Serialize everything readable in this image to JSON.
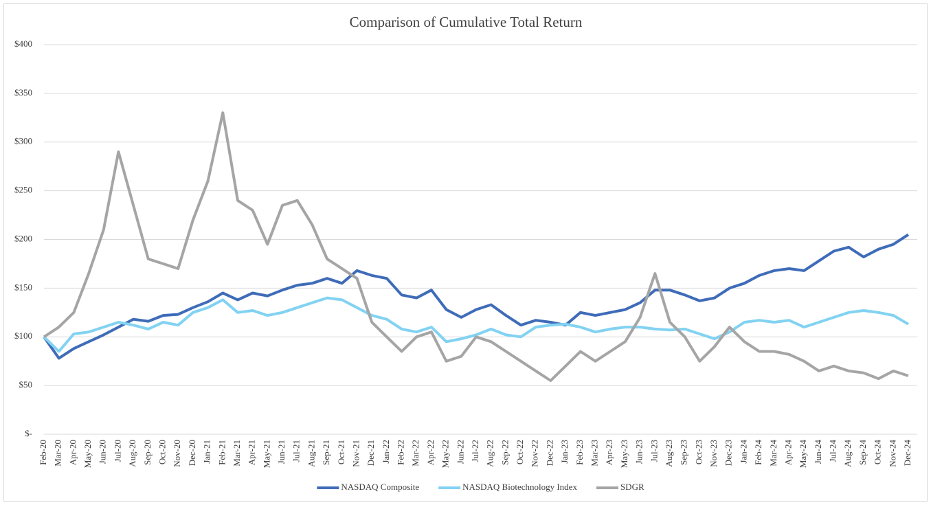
{
  "chart_data": {
    "type": "line",
    "title": "Comparison of Cumulative Total Return",
    "categories": [
      "Feb-20",
      "Mar-20",
      "Apr-20",
      "May-20",
      "Jun-20",
      "Jul-20",
      "Aug-20",
      "Sep-20",
      "Oct-20",
      "Nov-20",
      "Dec-20",
      "Jan-21",
      "Feb-21",
      "Mar-21",
      "Apr-21",
      "May-21",
      "Jun-21",
      "Jul-21",
      "Aug-21",
      "Sep-21",
      "Oct-21",
      "Nov-21",
      "Dec-21",
      "Jan-22",
      "Feb-22",
      "Mar-22",
      "Apr-22",
      "May-22",
      "Jun-22",
      "Jul-22",
      "Aug-22",
      "Sep-22",
      "Oct-22",
      "Nov-22",
      "Dec-22",
      "Jan-23",
      "Feb-23",
      "Mar-23",
      "Apr-23",
      "May-23",
      "Jun-23",
      "Jul-23",
      "Aug-23",
      "Sep-23",
      "Oct-23",
      "Nov-23",
      "Dec-23",
      "Jan-24",
      "Feb-24",
      "Mar-24",
      "Apr-24",
      "May-24",
      "Jun-24",
      "Jul-24",
      "Aug-24",
      "Sep-24",
      "Oct-24",
      "Nov-24",
      "Dec-24"
    ],
    "series": [
      {
        "name": "NASDAQ Composite",
        "color": "#3f6cb8",
        "values": [
          100,
          78,
          88,
          95,
          102,
          110,
          118,
          116,
          122,
          123,
          130,
          136,
          145,
          138,
          145,
          142,
          148,
          153,
          155,
          160,
          155,
          168,
          163,
          160,
          143,
          140,
          148,
          128,
          120,
          128,
          133,
          122,
          112,
          117,
          115,
          112,
          125,
          122,
          125,
          128,
          135,
          148,
          148,
          143,
          137,
          140,
          150,
          155,
          163,
          168,
          170,
          168,
          178,
          188,
          192,
          182,
          190,
          195,
          205
        ]
      },
      {
        "name": "NASDAQ Biotechnology Index",
        "color": "#82d2f2",
        "values": [
          100,
          85,
          103,
          105,
          110,
          115,
          112,
          108,
          115,
          112,
          125,
          130,
          138,
          125,
          127,
          122,
          125,
          130,
          135,
          140,
          138,
          130,
          122,
          118,
          108,
          105,
          110,
          95,
          98,
          102,
          108,
          102,
          100,
          110,
          112,
          113,
          110,
          105,
          108,
          110,
          110,
          108,
          107,
          108,
          103,
          98,
          105,
          115,
          117,
          115,
          117,
          110,
          115,
          120,
          125,
          127,
          125,
          122,
          113
        ]
      },
      {
        "name": "SDGR",
        "color": "#a5a5a5",
        "values": [
          100,
          110,
          125,
          165,
          210,
          290,
          235,
          180,
          175,
          170,
          220,
          260,
          330,
          240,
          230,
          195,
          235,
          240,
          215,
          180,
          170,
          160,
          115,
          100,
          85,
          100,
          105,
          75,
          80,
          100,
          95,
          85,
          75,
          65,
          55,
          70,
          85,
          75,
          85,
          95,
          120,
          165,
          115,
          100,
          75,
          90,
          110,
          95,
          85,
          85,
          82,
          75,
          65,
          70,
          65,
          63,
          57,
          65,
          60
        ]
      }
    ],
    "ylim": [
      0,
      400
    ],
    "yticks": [
      {
        "value": 0,
        "label": "$-"
      },
      {
        "value": 50,
        "label": "$50"
      },
      {
        "value": 100,
        "label": "$100"
      },
      {
        "value": 150,
        "label": "$150"
      },
      {
        "value": 200,
        "label": "$200"
      },
      {
        "value": 250,
        "label": "$250"
      },
      {
        "value": 300,
        "label": "$300"
      },
      {
        "value": 350,
        "label": "$350"
      },
      {
        "value": 400,
        "label": "$400"
      }
    ],
    "grid": true,
    "legend": "bottom"
  }
}
